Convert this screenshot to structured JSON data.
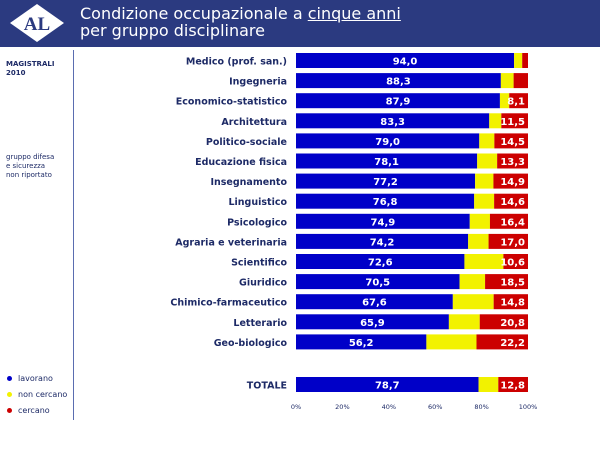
{
  "header": {
    "logo_text": "AL",
    "title_line1_pre": "Condizione occupazionale a ",
    "title_line1_underlined": "cinque anni",
    "title_line2": "per gruppo disciplinare"
  },
  "sidebar": {
    "label_line1": "MAGISTRALI",
    "label_line2": "2010",
    "note_line1": "gruppo difesa",
    "note_line2": "e sicurezza",
    "note_line3": "non riportato"
  },
  "legend": [
    {
      "label": "lavorano",
      "color": "#0000c8"
    },
    {
      "label": "non cercano",
      "color": "#f2f200"
    },
    {
      "label": "cercano",
      "color": "#cc0000"
    }
  ],
  "chart_data": {
    "type": "bar",
    "orientation": "horizontal",
    "stacked": true,
    "categories": [
      "Medico (prof. san.)",
      "Ingegneria",
      "Economico-statistico",
      "Architettura",
      "Politico-sociale",
      "Educazione fisica",
      "Insegnamento",
      "Linguistico",
      "Psicologico",
      "Agraria e veterinaria",
      "Scientifico",
      "Giuridico",
      "Chimico-farmaceutico",
      "Letterario",
      "Geo-biologico"
    ],
    "series": [
      {
        "name": "lavorano",
        "color": "#0000c8",
        "values": [
          94.0,
          88.3,
          87.9,
          83.3,
          79.0,
          78.1,
          77.2,
          76.8,
          74.9,
          74.2,
          72.6,
          70.5,
          67.6,
          65.9,
          56.2
        ],
        "labels": [
          "94,0",
          "88,3",
          "87,9",
          "83,3",
          "79,0",
          "78,1",
          "77,2",
          "76,8",
          "74,9",
          "74,2",
          "72,6",
          "70,5",
          "67,6",
          "65,9",
          "56,2"
        ]
      },
      {
        "name": "non cercano",
        "color": "#f2f200",
        "values": [
          3.5,
          5.5,
          4.0,
          5.2,
          6.5,
          8.6,
          7.9,
          8.6,
          8.7,
          8.8,
          16.8,
          11.0,
          17.6,
          13.3,
          21.6
        ]
      },
      {
        "name": "cercano",
        "color": "#cc0000",
        "values": [
          2.5,
          6.2,
          8.1,
          11.5,
          14.5,
          13.3,
          14.9,
          14.6,
          16.4,
          17.0,
          10.6,
          18.5,
          14.8,
          20.8,
          22.2
        ],
        "labels": [
          "",
          "",
          "8,1",
          "11,5",
          "14,5",
          "13,3",
          "14,9",
          "14,6",
          "16,4",
          "17,0",
          "10,6",
          "18,5",
          "14,8",
          "20,8",
          "22,2"
        ]
      }
    ],
    "total": {
      "label": "TOTALE",
      "lavorano": 78.7,
      "lavorano_label": "78,7",
      "non_cercano": 8.5,
      "cercano": 12.8,
      "cercano_label": "12,8"
    },
    "x_ticks": [
      "0%",
      "20%",
      "40%",
      "60%",
      "80%",
      "100%"
    ],
    "xlim": [
      0,
      100
    ]
  }
}
